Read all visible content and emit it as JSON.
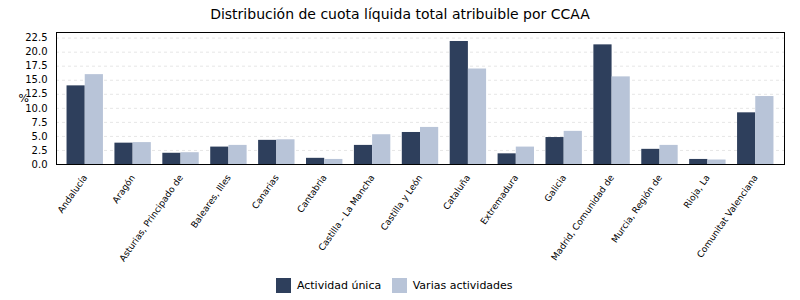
{
  "chart_data": {
    "type": "bar",
    "title": "Distribución de cuota líquida total atribuible por CCAA",
    "categories": [
      "Andalucía",
      "Aragón",
      "Asturias, Principado de",
      "Baleares, Illes",
      "Canarias",
      "Cantabria",
      "Castilla - La Mancha",
      "Castilla y León",
      "Cataluña",
      "Extremadura",
      "Galicia",
      "Madrid, Comunidad de",
      "Murcia, Región de",
      "Rioja, La",
      "Comunitat Valenciana"
    ],
    "series": [
      {
        "name": "Actividad única",
        "color": "#2E3F5C",
        "values": [
          14.0,
          3.8,
          2.0,
          3.1,
          4.3,
          1.1,
          3.4,
          5.7,
          21.9,
          1.9,
          4.8,
          21.3,
          2.7,
          0.9,
          9.2
        ]
      },
      {
        "name": "Varias actividades",
        "color": "#B8C4D8",
        "values": [
          16.0,
          3.9,
          2.1,
          3.4,
          4.4,
          0.9,
          5.3,
          6.6,
          17.0,
          3.1,
          5.9,
          15.6,
          3.4,
          0.8,
          12.1
        ]
      }
    ],
    "ylabel": "%",
    "ylim": [
      0,
      23.5
    ],
    "yticks": [
      {
        "value": 0,
        "label": "0.0"
      },
      2.5,
      {
        "value": 5,
        "label": "5.0"
      },
      7.5,
      {
        "value": 10,
        "label": "10.0"
      },
      12.5,
      {
        "value": 15,
        "label": "15.0"
      },
      17.5,
      {
        "value": 20,
        "label": "20.0"
      },
      22.5
    ],
    "grid": true,
    "legend": "bottom"
  }
}
